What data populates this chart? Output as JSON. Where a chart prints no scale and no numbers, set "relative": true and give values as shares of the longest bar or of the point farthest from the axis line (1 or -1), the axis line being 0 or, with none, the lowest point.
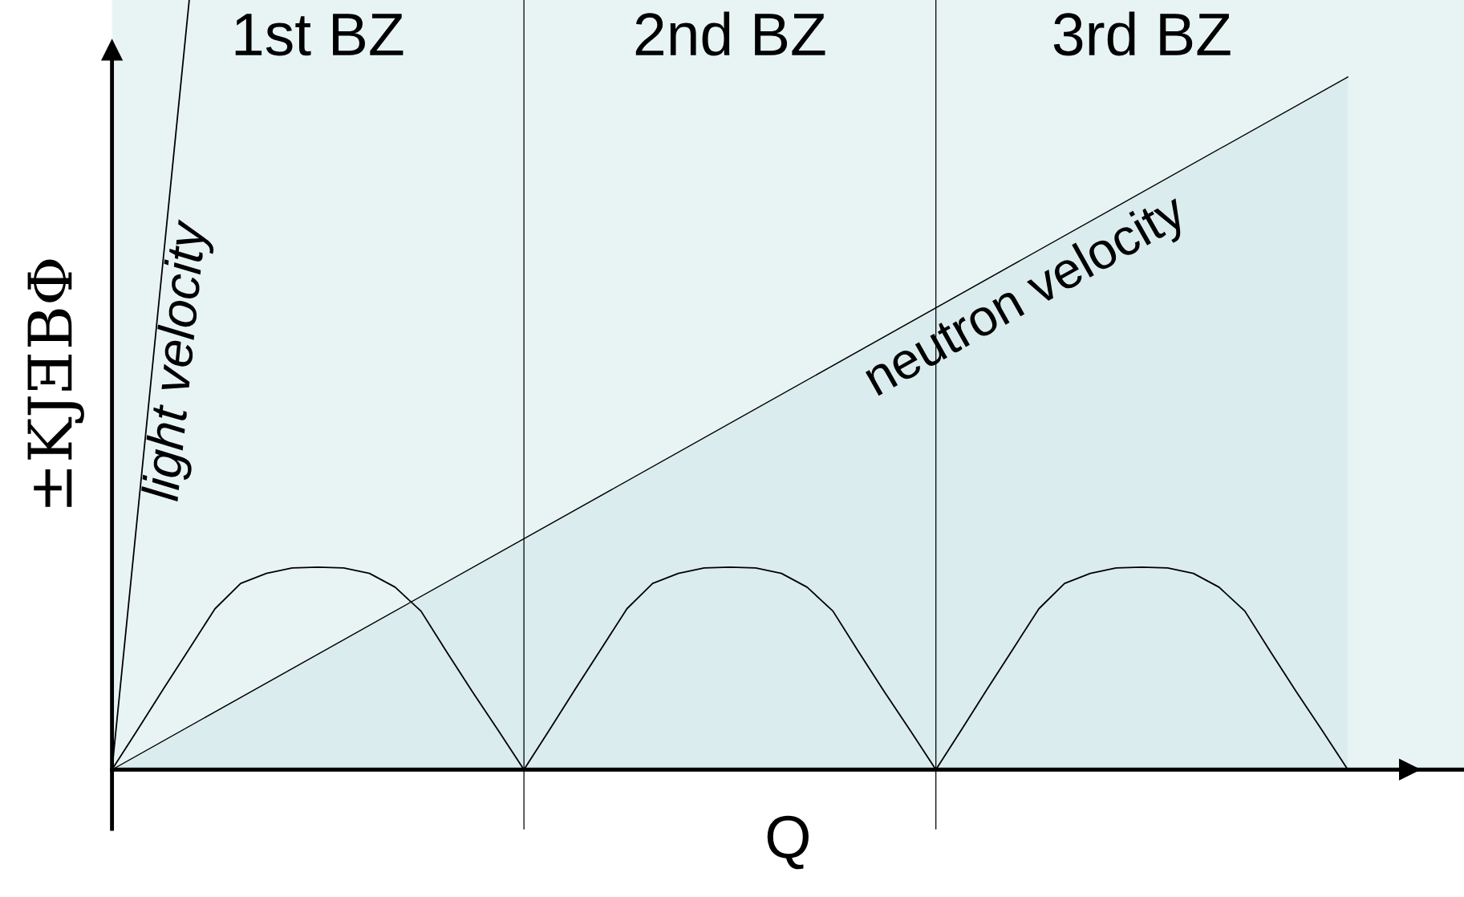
{
  "chart_data": {
    "type": "line",
    "relative": true,
    "xlabel": "Q",
    "ylabel": "±KJƎBΦ",
    "categories": [
      null,
      null,
      null,
      null,
      null,
      null,
      null,
      null,
      null,
      null,
      null,
      null,
      null,
      null,
      null,
      null,
      null,
      null,
      null,
      null,
      null,
      null,
      null,
      null,
      null,
      null,
      null,
      null,
      null,
      null,
      null,
      null,
      null,
      null,
      null,
      null,
      null,
      null,
      null,
      null,
      null,
      null,
      null,
      null,
      null,
      null,
      null,
      null,
      null
    ],
    "series": [
      {
        "color": "#000000",
        "values": [
          0,
          0.052,
          0.105,
          0.157,
          0.209,
          0.242,
          0.255,
          0.262,
          0.263,
          0.262,
          0.255,
          0.237,
          0.206,
          0.153,
          0.101,
          0.051,
          0,
          0.052,
          0.105,
          0.157,
          0.209,
          0.242,
          0.255,
          0.262,
          0.263,
          0.262,
          0.255,
          0.237,
          0.206,
          0.153,
          0.101,
          0.051,
          0,
          0.052,
          0.105,
          0.157,
          0.209,
          0.242,
          0.255,
          0.262,
          0.263,
          0.262,
          0.255,
          0.237,
          0.206,
          0.153,
          0.101,
          0.051,
          0
        ]
      },
      {
        "name": "light velocity",
        "color": "#000000",
        "values": [
          0,
          null,
          null,
          1,
          null,
          null,
          null,
          null,
          null,
          null,
          null,
          null,
          null,
          null,
          null,
          null,
          null,
          null,
          null,
          null,
          null,
          null,
          null,
          null,
          null,
          null,
          null,
          null,
          null,
          null,
          null,
          null,
          null,
          null,
          null,
          null,
          null,
          null,
          null,
          null,
          null,
          null,
          null,
          null,
          null,
          null,
          null,
          null,
          null
        ]
      },
      {
        "name": "neutron velocity",
        "type": "area",
        "color": "#daeced",
        "values": [
          0,
          null,
          null,
          null,
          null,
          null,
          null,
          null,
          null,
          null,
          null,
          null,
          null,
          null,
          null,
          null,
          null,
          null,
          null,
          null,
          null,
          null,
          null,
          null,
          null,
          null,
          null,
          null,
          null,
          null,
          null,
          null,
          null,
          null,
          null,
          null,
          null,
          null,
          null,
          null,
          null,
          null,
          null,
          null,
          null,
          null,
          null,
          null,
          0.9
        ]
      }
    ],
    "annotations": [
      "1st BZ",
      "2nd BZ",
      "3rd BZ"
    ],
    "legend": false
  }
}
